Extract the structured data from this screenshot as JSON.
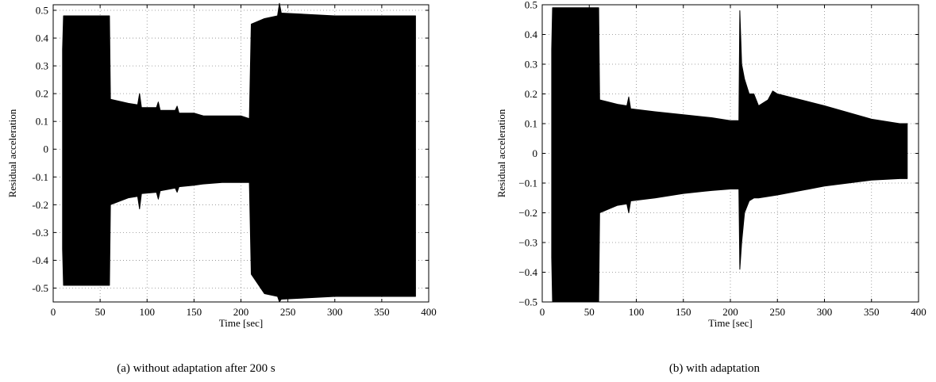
{
  "chart_data": [
    {
      "type": "area",
      "caption": "(a)  without adaptation after 200 s",
      "xlabel": "Time [sec]",
      "ylabel": "Residual acceleration",
      "xlim": [
        0,
        400
      ],
      "ylim": [
        -0.55,
        0.52
      ],
      "xticks": [
        0,
        50,
        100,
        150,
        200,
        250,
        300,
        350,
        400
      ],
      "xtick_labels": [
        "0",
        "50",
        "100",
        "150",
        "200",
        "250",
        "300",
        "350",
        "400"
      ],
      "yticks": [
        -0.5,
        -0.4,
        -0.3,
        -0.2,
        -0.1,
        0,
        0.1,
        0.2,
        0.3,
        0.4,
        0.5
      ],
      "ytick_labels": [
        "-0.5",
        "-0.4",
        "-0.3",
        "-0.2",
        "-0.1",
        "0",
        "0.1",
        "0.2",
        "0.3",
        "0.4",
        "0.5"
      ],
      "grid": true,
      "color": "#000000",
      "series": [
        {
          "upper": [
            [
              10,
              0.36
            ],
            [
              11,
              0.48
            ],
            [
              60,
              0.48
            ],
            [
              61,
              0.18
            ],
            [
              80,
              0.165
            ],
            [
              90,
              0.16
            ],
            [
              92,
              0.2
            ],
            [
              94,
              0.15
            ],
            [
              110,
              0.15
            ],
            [
              112,
              0.17
            ],
            [
              114,
              0.14
            ],
            [
              130,
              0.14
            ],
            [
              132,
              0.155
            ],
            [
              134,
              0.13
            ],
            [
              150,
              0.13
            ],
            [
              160,
              0.12
            ],
            [
              180,
              0.12
            ],
            [
              200,
              0.12
            ],
            [
              209,
              0.11
            ],
            [
              211,
              0.45
            ],
            [
              225,
              0.47
            ],
            [
              239,
              0.48
            ],
            [
              241,
              0.525
            ],
            [
              243,
              0.49
            ],
            [
              300,
              0.48
            ],
            [
              350,
              0.48
            ],
            [
              386,
              0.48
            ]
          ],
          "lower": [
            [
              10,
              -0.36
            ],
            [
              11,
              -0.49
            ],
            [
              60,
              -0.49
            ],
            [
              61,
              -0.2
            ],
            [
              80,
              -0.175
            ],
            [
              90,
              -0.17
            ],
            [
              92,
              -0.215
            ],
            [
              94,
              -0.16
            ],
            [
              110,
              -0.155
            ],
            [
              112,
              -0.18
            ],
            [
              114,
              -0.15
            ],
            [
              130,
              -0.14
            ],
            [
              132,
              -0.155
            ],
            [
              134,
              -0.135
            ],
            [
              150,
              -0.13
            ],
            [
              160,
              -0.125
            ],
            [
              180,
              -0.12
            ],
            [
              200,
              -0.12
            ],
            [
              209,
              -0.12
            ],
            [
              211,
              -0.45
            ],
            [
              225,
              -0.52
            ],
            [
              239,
              -0.53
            ],
            [
              241,
              -0.55
            ],
            [
              243,
              -0.54
            ],
            [
              300,
              -0.53
            ],
            [
              350,
              -0.53
            ],
            [
              386,
              -0.53
            ]
          ]
        }
      ]
    },
    {
      "type": "area",
      "caption": "(b)  with adaptation",
      "xlabel": "Time [sec]",
      "ylabel": "Residual acceleration",
      "xlim": [
        0,
        400
      ],
      "ylim": [
        -0.5,
        0.5
      ],
      "xticks": [
        0,
        50,
        100,
        150,
        200,
        250,
        300,
        350,
        400
      ],
      "xtick_labels": [
        "0",
        "50",
        "100",
        "150",
        "200",
        "250",
        "300",
        "350",
        "400"
      ],
      "yticks": [
        -0.5,
        -0.4,
        -0.3,
        -0.2,
        -0.1,
        0,
        0.1,
        0.2,
        0.3,
        0.4,
        0.5
      ],
      "ytick_labels": [
        "−0.5",
        "−0.4",
        "−0.3",
        "−0.2",
        "−0.1",
        "0",
        "0.1",
        "0.2",
        "0.3",
        "0.4",
        "0.5"
      ],
      "grid": true,
      "color": "#000000",
      "series": [
        {
          "upper": [
            [
              10,
              0.35
            ],
            [
              11,
              0.49
            ],
            [
              60,
              0.49
            ],
            [
              61,
              0.18
            ],
            [
              80,
              0.165
            ],
            [
              90,
              0.16
            ],
            [
              92,
              0.19
            ],
            [
              94,
              0.15
            ],
            [
              120,
              0.14
            ],
            [
              150,
              0.13
            ],
            [
              180,
              0.12
            ],
            [
              200,
              0.11
            ],
            [
              209,
              0.11
            ],
            [
              210,
              0.48
            ],
            [
              212,
              0.3
            ],
            [
              215,
              0.25
            ],
            [
              220,
              0.2
            ],
            [
              225,
              0.2
            ],
            [
              230,
              0.16
            ],
            [
              240,
              0.18
            ],
            [
              245,
              0.21
            ],
            [
              250,
              0.2
            ],
            [
              300,
              0.16
            ],
            [
              350,
              0.115
            ],
            [
              380,
              0.1
            ],
            [
              388,
              0.1
            ]
          ],
          "lower": [
            [
              10,
              -0.35
            ],
            [
              11,
              -0.5
            ],
            [
              60,
              -0.5
            ],
            [
              61,
              -0.2
            ],
            [
              80,
              -0.175
            ],
            [
              90,
              -0.17
            ],
            [
              92,
              -0.2
            ],
            [
              94,
              -0.16
            ],
            [
              120,
              -0.15
            ],
            [
              150,
              -0.135
            ],
            [
              180,
              -0.125
            ],
            [
              200,
              -0.12
            ],
            [
              209,
              -0.12
            ],
            [
              210,
              -0.39
            ],
            [
              212,
              -0.3
            ],
            [
              215,
              -0.2
            ],
            [
              220,
              -0.16
            ],
            [
              225,
              -0.15
            ],
            [
              230,
              -0.15
            ],
            [
              250,
              -0.14
            ],
            [
              300,
              -0.11
            ],
            [
              350,
              -0.09
            ],
            [
              380,
              -0.085
            ],
            [
              388,
              -0.085
            ]
          ]
        }
      ]
    }
  ]
}
